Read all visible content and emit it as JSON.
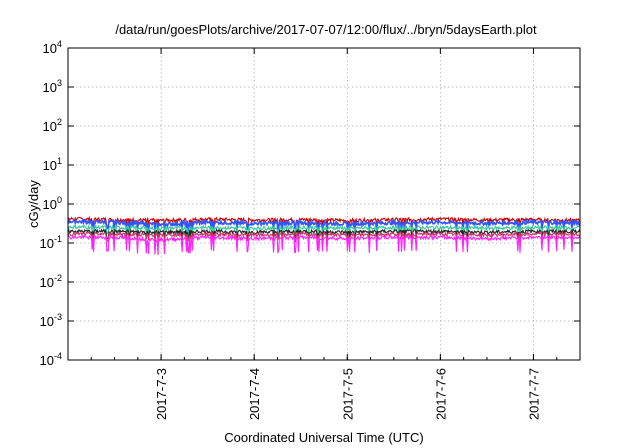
{
  "chart_data": {
    "type": "line",
    "title": "/data/run/goesPlots/archive/2017-07-07/12:00/flux/../bryn/5daysEarth.plot",
    "xlabel": "Coordinated Universal Time (UTC)",
    "ylabel": "cGy/day",
    "yscale": "log",
    "ylim": [
      0.0001,
      10000
    ],
    "xlim": [
      "2017-07-02 00:00",
      "2017-07-07 12:00"
    ],
    "grid": true,
    "legend": "none",
    "x_ticks": [
      "2017-7-3",
      "2017-7-4",
      "2017-7-5",
      "2017-7-6",
      "2017-7-7"
    ],
    "y_ticks": [
      {
        "base": "10",
        "exp": "-4"
      },
      {
        "base": "10",
        "exp": "-3"
      },
      {
        "base": "10",
        "exp": "-2"
      },
      {
        "base": "10",
        "exp": "-1"
      },
      {
        "base": "10",
        "exp": "0"
      },
      {
        "base": "10",
        "exp": "1"
      },
      {
        "base": "10",
        "exp": "2"
      },
      {
        "base": "10",
        "exp": "3"
      },
      {
        "base": "10",
        "exp": "4"
      }
    ],
    "x": [
      "2017-07-02 00:00",
      "2017-07-02 12:00",
      "2017-07-03 00:00",
      "2017-07-03 12:00",
      "2017-07-04 00:00",
      "2017-07-04 12:00",
      "2017-07-05 00:00",
      "2017-07-05 12:00",
      "2017-07-06 00:00",
      "2017-07-06 12:00",
      "2017-07-07 00:00",
      "2017-07-07 12:00"
    ],
    "series": [
      {
        "color": "#cc0000",
        "values": [
          0.42,
          0.4,
          0.38,
          0.41,
          0.39,
          0.4,
          0.38,
          0.4,
          0.41,
          0.39,
          0.4,
          0.38
        ]
      },
      {
        "color": "#3355ff",
        "values": [
          0.36,
          0.34,
          0.3,
          0.34,
          0.32,
          0.33,
          0.31,
          0.33,
          0.34,
          0.32,
          0.34,
          0.33
        ]
      },
      {
        "color": "#33cc99",
        "values": [
          0.26,
          0.25,
          0.24,
          0.25,
          0.24,
          0.25,
          0.24,
          0.25,
          0.25,
          0.24,
          0.25,
          0.25
        ]
      },
      {
        "color": "#222222",
        "values": [
          0.2,
          0.2,
          0.19,
          0.2,
          0.19,
          0.2,
          0.19,
          0.2,
          0.2,
          0.19,
          0.2,
          0.2
        ]
      },
      {
        "color": "#cc3366",
        "values": [
          0.17,
          0.17,
          0.16,
          0.17,
          0.16,
          0.17,
          0.16,
          0.17,
          0.17,
          0.16,
          0.17,
          0.17
        ]
      },
      {
        "color": "#ff22ff",
        "values": [
          0.14,
          0.14,
          0.12,
          0.14,
          0.13,
          0.14,
          0.13,
          0.14,
          0.14,
          0.13,
          0.14,
          0.14
        ]
      }
    ]
  }
}
